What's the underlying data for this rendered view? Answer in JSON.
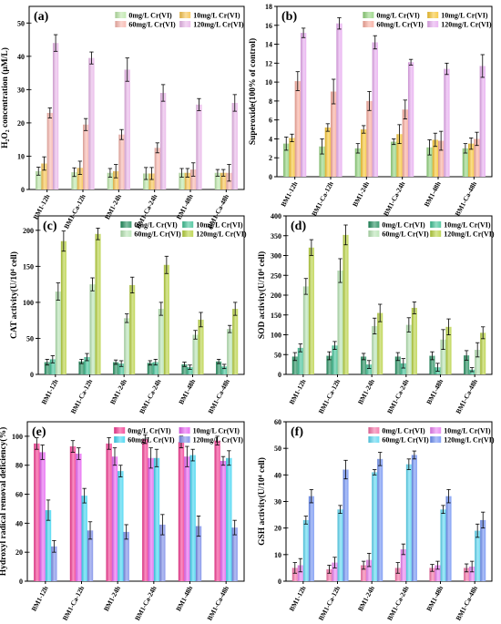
{
  "categories": [
    "BM1-12h",
    "BM1-Ca-12h",
    "BM1-24h",
    "BM1-Ca-24h",
    "BM1-48h",
    "BM1-Ca-48h"
  ],
  "series_names": [
    "0mg/L Cr(VI)",
    "10mg/L Cr(VI)",
    "60mg/L Cr(VI)",
    "120mg/L Cr(VI)"
  ],
  "chart_data": [
    {
      "type": "bar",
      "panel": "(a)",
      "ylabel": "H₂O₂ concentration (μM/L)",
      "ylim": [
        0,
        55
      ],
      "yticks": [
        0,
        10,
        20,
        30,
        40,
        50
      ],
      "legend": "top",
      "colors": [
        "#b9e6a6",
        "#f5c14a",
        "#f7b3aa",
        "#e8b3e8"
      ],
      "categories": [
        "BM1-12h",
        "BM1-Ca-12h",
        "BM1-24h",
        "BM1-Ca-24h",
        "BM1-48h",
        "BM1-Ca-48h"
      ],
      "series": [
        {
          "name": "0mg/L Cr(VI)",
          "values": [
            5.5,
            5.2,
            5.0,
            4.8,
            5.0,
            5.0
          ],
          "errors": [
            1.2,
            1.3,
            1.3,
            1.8,
            1.3,
            1.0
          ]
        },
        {
          "name": "10mg/L Cr(VI)",
          "values": [
            7.8,
            6.5,
            5.5,
            4.8,
            5.0,
            5.0
          ],
          "errors": [
            2.0,
            2.0,
            2.0,
            1.8,
            1.3,
            1.0
          ]
        },
        {
          "name": "60mg/L Cr(VI)",
          "values": [
            23.0,
            19.5,
            16.5,
            12.5,
            6.0,
            5.0
          ],
          "errors": [
            1.5,
            1.8,
            1.5,
            1.5,
            2.0,
            2.5
          ]
        },
        {
          "name": "120mg/L Cr(VI)",
          "values": [
            44.0,
            39.5,
            36.0,
            29.0,
            25.5,
            26.0
          ],
          "errors": [
            2.5,
            1.8,
            3.5,
            2.5,
            1.8,
            2.5
          ]
        }
      ]
    },
    {
      "type": "bar",
      "panel": "(b)",
      "ylabel": "Superoxide(100% of control)",
      "ylim": [
        0,
        18
      ],
      "yticks": [
        0,
        2,
        4,
        6,
        8,
        10,
        12,
        14,
        16,
        18
      ],
      "legend": "top",
      "colors": [
        "#8fd17a",
        "#f5c32d",
        "#f7a89a",
        "#e6a8ee"
      ],
      "categories": [
        "BM1-12h",
        "BM1-Ca-12h",
        "BM1-24h",
        "BM1-Ca-24h",
        "BM1-48h",
        "BM1-Ca-48h"
      ],
      "series": [
        {
          "name": "0mg/L Cr(VI)",
          "values": [
            3.5,
            3.2,
            3.0,
            3.7,
            3.1,
            3.0
          ],
          "errors": [
            0.7,
            0.8,
            0.5,
            0.3,
            0.8,
            0.5
          ]
        },
        {
          "name": "10mg/L Cr(VI)",
          "values": [
            4.1,
            5.2,
            5.0,
            4.5,
            3.9,
            3.5
          ],
          "errors": [
            0.4,
            0.4,
            0.4,
            1.0,
            0.7,
            0.6
          ]
        },
        {
          "name": "60mg/L Cr(VI)",
          "values": [
            10.1,
            9.0,
            8.0,
            7.1,
            3.8,
            4.0
          ],
          "errors": [
            1.0,
            1.3,
            1.0,
            1.0,
            1.0,
            0.7
          ]
        },
        {
          "name": "120mg/L Cr(VI)",
          "values": [
            15.2,
            16.2,
            14.2,
            12.1,
            11.4,
            11.7
          ],
          "errors": [
            0.5,
            0.6,
            0.7,
            0.3,
            0.6,
            1.2
          ]
        }
      ]
    },
    {
      "type": "bar",
      "panel": "(c)",
      "ylabel": "CAT activity(U/10⁴ cell)",
      "ylim": [
        0,
        220
      ],
      "yticks": [
        0,
        50,
        100,
        150,
        200
      ],
      "legend": "top",
      "colors": [
        "#1e8a5a",
        "#3cbf93",
        "#b4e2b0",
        "#b5cf3a"
      ],
      "categories": [
        "BM1-12h",
        "BM1-Ca-12h",
        "BM1-24h",
        "BM1-Ca-24h",
        "BM1-48h",
        "BM1-Ca-48h"
      ],
      "series": [
        {
          "name": "0mg/L Cr(VI)",
          "values": [
            17,
            18,
            17,
            16,
            14,
            18
          ],
          "errors": [
            4,
            3,
            3,
            3,
            3,
            3
          ]
        },
        {
          "name": "10mg/L Cr(VI)",
          "values": [
            21,
            24,
            15,
            17,
            10,
            11
          ],
          "errors": [
            5,
            5,
            4,
            4,
            3,
            3
          ]
        },
        {
          "name": "60mg/L Cr(VI)",
          "values": [
            115,
            125,
            78,
            91,
            55,
            63
          ],
          "errors": [
            12,
            9,
            6,
            9,
            6,
            5
          ]
        },
        {
          "name": "120mg/L Cr(VI)",
          "values": [
            185,
            195,
            124,
            152,
            76,
            91
          ],
          "errors": [
            14,
            8,
            11,
            12,
            10,
            9
          ]
        }
      ]
    },
    {
      "type": "bar",
      "panel": "(d)",
      "ylabel": "SOD activity(U/10⁴ cell)",
      "ylim": [
        0,
        400
      ],
      "yticks": [
        0,
        50,
        100,
        150,
        200,
        250,
        300,
        350,
        400
      ],
      "legend": "top",
      "colors": [
        "#1e8a5a",
        "#3cbf93",
        "#b4e2b0",
        "#b5cf3a"
      ],
      "categories": [
        "BM1-12h",
        "BM1-Ca-12h",
        "BM1-24h",
        "BM1-Ca-24h",
        "BM1-48h",
        "BM1-Ca-48h"
      ],
      "series": [
        {
          "name": "0mg/L Cr(VI)",
          "values": [
            45,
            47,
            45,
            45,
            47,
            48
          ],
          "errors": [
            10,
            10,
            8,
            10,
            10,
            12
          ]
        },
        {
          "name": "10mg/L Cr(VI)",
          "values": [
            67,
            73,
            25,
            28,
            18,
            12
          ],
          "errors": [
            10,
            10,
            10,
            12,
            10,
            5
          ]
        },
        {
          "name": "60mg/L Cr(VI)",
          "values": [
            222,
            262,
            122,
            125,
            88,
            62
          ],
          "errors": [
            20,
            30,
            20,
            18,
            25,
            18
          ]
        },
        {
          "name": "120mg/L Cr(VI)",
          "values": [
            320,
            352,
            155,
            168,
            120,
            105
          ],
          "errors": [
            20,
            25,
            22,
            15,
            20,
            15
          ]
        }
      ]
    },
    {
      "type": "bar",
      "panel": "(e)",
      "ylabel": "Hydroxyl radical removal deficiency(%)",
      "ylim": [
        0,
        110
      ],
      "yticks": [
        0,
        20,
        40,
        60,
        80,
        100
      ],
      "legend": "top",
      "colors": [
        "#f2368f",
        "#e55df0",
        "#3ad3f0",
        "#7788e8"
      ],
      "categories": [
        "BM1-12h",
        "BM1-Ca-12h",
        "BM1-24h",
        "BM1-Ca-24h",
        "BM1-48h",
        "BM1-Ca-48h"
      ],
      "series": [
        {
          "name": "0mg/L Cr(VI)",
          "values": [
            95,
            93,
            95,
            98,
            96,
            97
          ],
          "errors": [
            4,
            4,
            4,
            3,
            4,
            3
          ]
        },
        {
          "name": "10mg/L Cr(VI)",
          "values": [
            89,
            88,
            86,
            85,
            86,
            83
          ],
          "errors": [
            5,
            4,
            6,
            7,
            7,
            3
          ]
        },
        {
          "name": "60mg/L Cr(VI)",
          "values": [
            49,
            59,
            76,
            85,
            87,
            85
          ],
          "errors": [
            7,
            5,
            4,
            6,
            4,
            5
          ]
        },
        {
          "name": "120mg/L Cr(VI)",
          "values": [
            24,
            35,
            34,
            39,
            38,
            37
          ],
          "errors": [
            4,
            6,
            5,
            7,
            7,
            5
          ]
        }
      ]
    },
    {
      "type": "bar",
      "panel": "(f)",
      "ylabel": "GSH activity(U/10⁴ cell)",
      "ylim": [
        0,
        60
      ],
      "yticks": [
        0,
        10,
        20,
        30,
        40,
        50,
        60
      ],
      "legend": "top",
      "colors": [
        "#f26ca3",
        "#e87cf0",
        "#57d5f0",
        "#6c8ef2"
      ],
      "categories": [
        "BM1-12h",
        "BM1-Ca-12h",
        "BM1-24h",
        "BM1-Ca-24h",
        "BM1-48h",
        "BM1-Ca-48h"
      ],
      "series": [
        {
          "name": "0mg/L Cr(VI)",
          "values": [
            5,
            4.5,
            6,
            5,
            5,
            5
          ],
          "errors": [
            2,
            1.5,
            1.5,
            2,
            1.3,
            1.5
          ]
        },
        {
          "name": "10mg/L Cr(VI)",
          "values": [
            6,
            7,
            8,
            12,
            6,
            5.5
          ],
          "errors": [
            2.5,
            2,
            2.5,
            2,
            1.5,
            2
          ]
        },
        {
          "name": "60mg/L Cr(VI)",
          "values": [
            23,
            27,
            41,
            44,
            27,
            19
          ],
          "errors": [
            1.5,
            1.5,
            1,
            2,
            1.5,
            2.5
          ]
        },
        {
          "name": "120mg/L Cr(VI)",
          "values": [
            32,
            42,
            46,
            47.5,
            32,
            23
          ],
          "errors": [
            2.5,
            3.5,
            2.5,
            1.5,
            2.5,
            3
          ]
        }
      ]
    }
  ]
}
